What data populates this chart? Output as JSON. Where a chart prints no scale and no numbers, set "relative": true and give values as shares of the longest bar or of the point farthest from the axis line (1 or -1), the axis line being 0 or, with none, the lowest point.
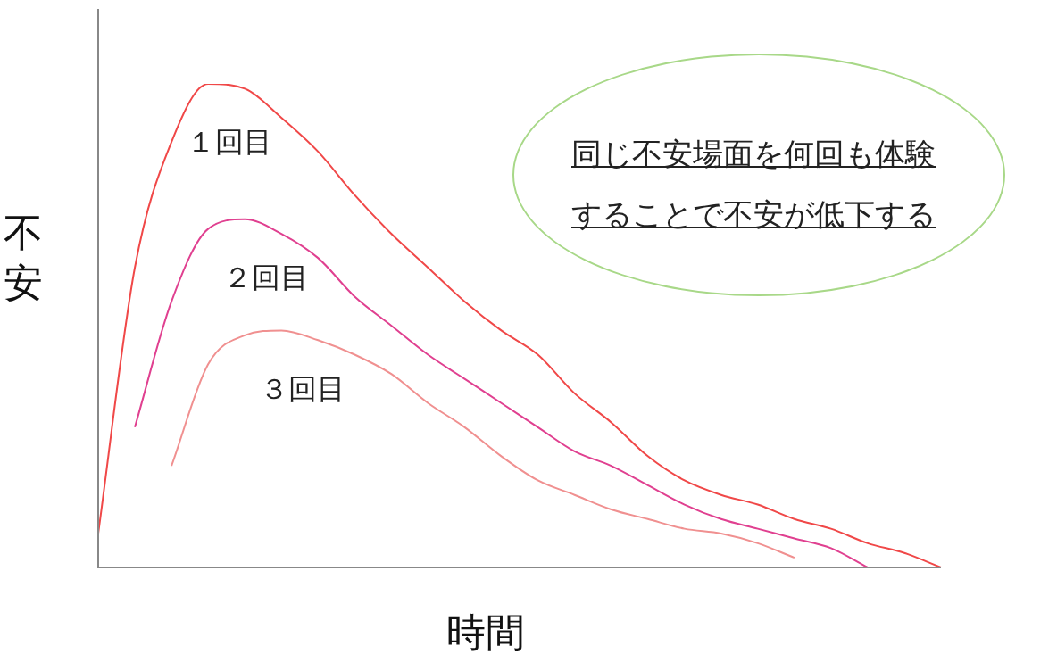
{
  "chart_data": {
    "type": "line",
    "relative": true,
    "xlabel": "時間",
    "ylabel": "不安",
    "legend": false,
    "marker": "none",
    "annotations": [
      "同じ不安場面を何回も体験することで不安が低下する"
    ],
    "categories": [
      null,
      null,
      null,
      null,
      null,
      null,
      null,
      null,
      null,
      null,
      null,
      null,
      null,
      null,
      null,
      null,
      null,
      null,
      null,
      null,
      null,
      null,
      null,
      null
    ],
    "series": [
      {
        "name": "１回目",
        "color": "#f04848",
        "values": [
          0.07,
          0.62,
          0.88,
          1.0,
          0.99,
          0.93,
          0.86,
          0.77,
          0.69,
          0.62,
          0.55,
          0.49,
          0.44,
          0.36,
          0.3,
          0.23,
          0.18,
          0.15,
          0.13,
          0.1,
          0.08,
          0.05,
          0.03,
          0
        ]
      },
      {
        "name": "２回目",
        "color": "#e04090",
        "values": [
          null,
          0.29,
          0.55,
          0.7,
          0.72,
          0.69,
          0.64,
          0.56,
          0.5,
          0.44,
          0.39,
          0.34,
          0.29,
          0.24,
          0.21,
          0.17,
          0.13,
          0.1,
          0.08,
          0.06,
          0.04,
          0,
          null,
          null
        ]
      },
      {
        "name": "３回目",
        "color": "#f09090",
        "values": [
          null,
          null,
          0.21,
          0.42,
          0.48,
          0.49,
          0.47,
          0.44,
          0.4,
          0.34,
          0.29,
          0.23,
          0.18,
          0.15,
          0.12,
          0.1,
          0.08,
          0.07,
          0.05,
          0.02,
          null,
          null,
          null,
          null
        ]
      }
    ]
  }
}
